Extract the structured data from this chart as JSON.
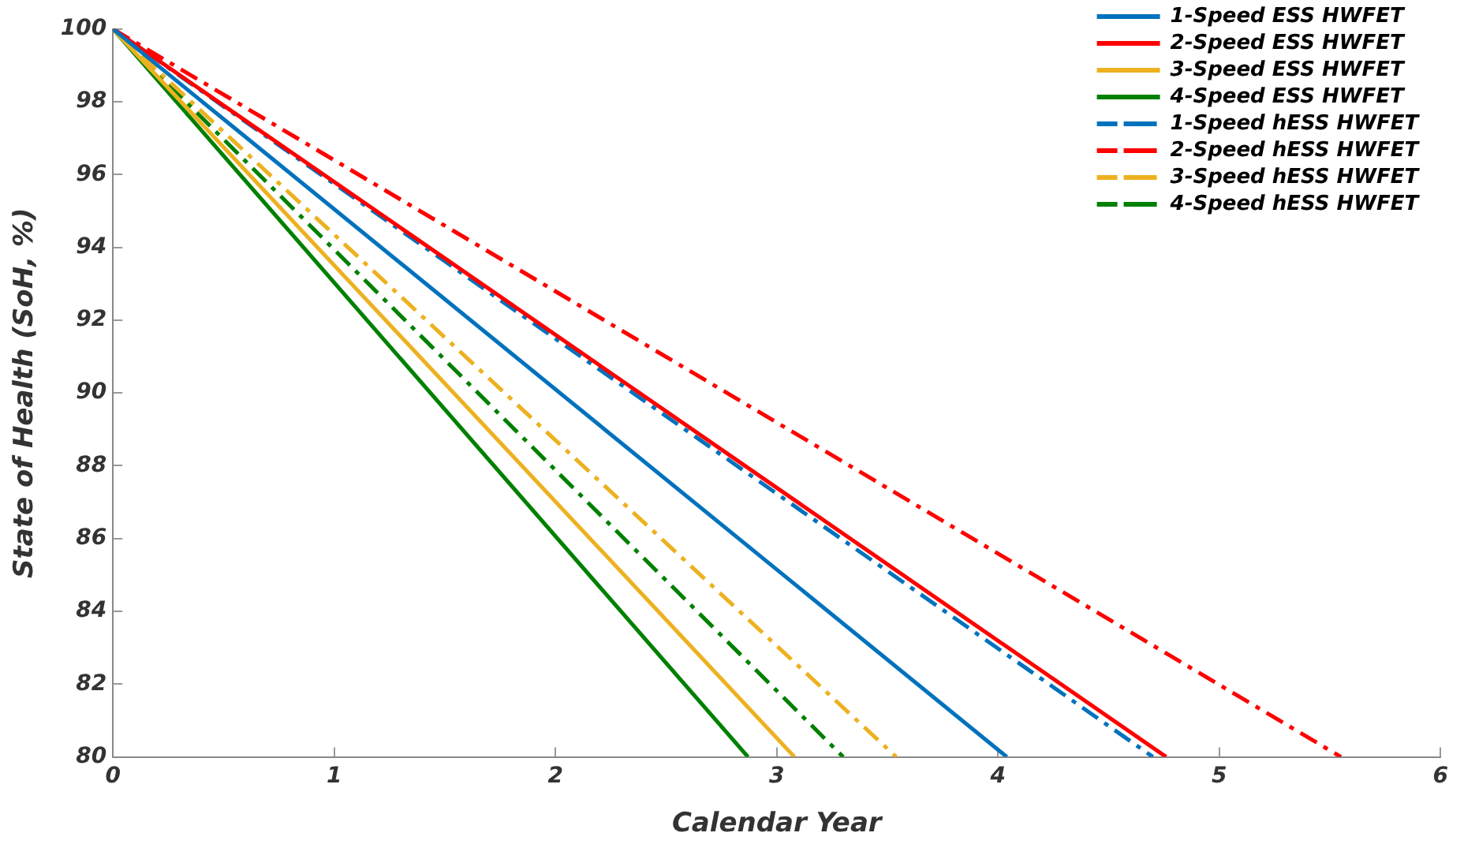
{
  "chart_data": {
    "type": "line",
    "xlabel": "Calendar Year",
    "ylabel": "State of Health (SoH, %)",
    "xlim": [
      0,
      6
    ],
    "xticks": [
      0,
      1,
      2,
      3,
      4,
      5,
      6
    ],
    "ylim": [
      80,
      100
    ],
    "yticks": [
      80,
      82,
      84,
      86,
      88,
      90,
      92,
      94,
      96,
      98,
      100
    ],
    "grid": false,
    "legend": "top right",
    "marker": "none",
    "series": [
      {
        "name": "1-Speed ESS HWFET",
        "color": "#0072bd",
        "x": [
          0,
          4.04
        ],
        "values": [
          100,
          80
        ],
        "line_style": "solid"
      },
      {
        "name": "2-Speed ESS HWFET",
        "color": "#ff0000",
        "x": [
          0,
          4.76
        ],
        "values": [
          100,
          80
        ],
        "line_style": "solid"
      },
      {
        "name": "3-Speed ESS HWFET",
        "color": "#edb120",
        "x": [
          0,
          3.08
        ],
        "values": [
          100,
          80
        ],
        "line_style": "solid"
      },
      {
        "name": "4-Speed ESS HWFET",
        "color": "#008000",
        "x": [
          0,
          2.87
        ],
        "values": [
          100,
          80
        ],
        "line_style": "solid"
      },
      {
        "name": "1-Speed hESS HWFET",
        "color": "#0072bd",
        "x": [
          0,
          4.7
        ],
        "values": [
          100,
          80
        ],
        "line_style": "dashed"
      },
      {
        "name": "2-Speed hESS HWFET",
        "color": "#ff0000",
        "x": [
          0,
          5.55
        ],
        "values": [
          100,
          80
        ],
        "line_style": "dashed"
      },
      {
        "name": "3-Speed hESS HWFET",
        "color": "#edb120",
        "x": [
          0,
          3.54
        ],
        "values": [
          100,
          80
        ],
        "line_style": "dashed"
      },
      {
        "name": "4-Speed hESS HWFET",
        "color": "#008000",
        "x": [
          0,
          3.3
        ],
        "values": [
          100,
          80
        ],
        "line_style": "dashed"
      }
    ]
  }
}
